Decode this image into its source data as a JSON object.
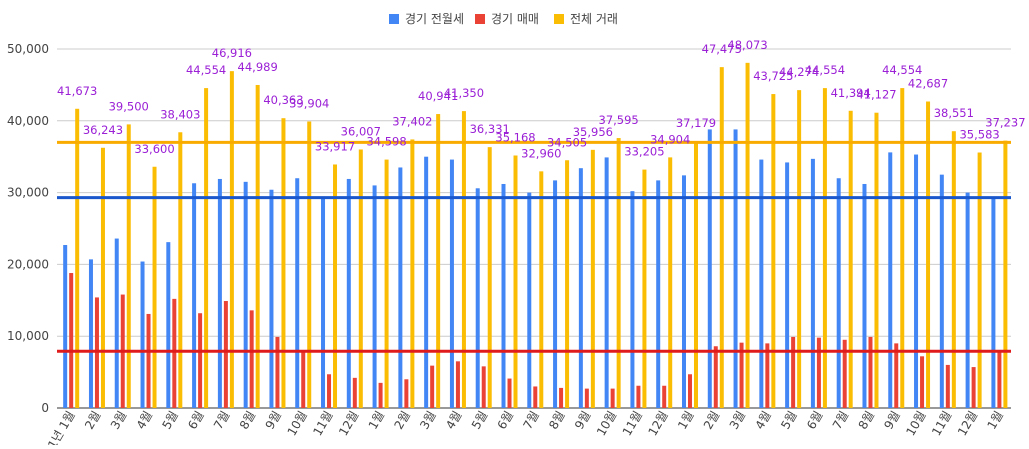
{
  "chart_data": {
    "type": "bar",
    "title": "",
    "xlabel": "",
    "ylabel": "",
    "ylim": [
      0,
      50000
    ],
    "yticks": [
      "0",
      "10,000",
      "20,000",
      "30,000",
      "40,000",
      "50,000"
    ],
    "ytick_values": [
      0,
      10000,
      20000,
      30000,
      40000,
      50000
    ],
    "grid": true,
    "legend_position": "top-center",
    "categories": [
      "1년 1월",
      "2월",
      "3월",
      "4월",
      "5월",
      "6월",
      "7월",
      "8월",
      "9월",
      "10월",
      "11월",
      "12월",
      "1월",
      "2월",
      "3월",
      "4월",
      "5월",
      "6월",
      "7월",
      "8월",
      "9월",
      "10월",
      "11월",
      "12월",
      "1월",
      "2월",
      "3월",
      "4월",
      "5월",
      "6월",
      "7월",
      "8월",
      "9월",
      "10월",
      "11월",
      "12월",
      "1월"
    ],
    "series": [
      {
        "name": "경기 전월세",
        "color": "#4285f4",
        "values": [
          22700,
          20700,
          23600,
          20400,
          23100,
          31300,
          31900,
          31500,
          30400,
          32000,
          29300,
          31900,
          31000,
          33500,
          35000,
          34600,
          30600,
          31200,
          30000,
          31700,
          33400,
          34900,
          30200,
          31700,
          32400,
          38800,
          38800,
          34600,
          34200,
          34700,
          32000,
          31200,
          35600,
          35300,
          32500,
          30000,
          29400
        ]
      },
      {
        "name": "경기 매매",
        "color": "#ea4335",
        "values": [
          18800,
          15400,
          15800,
          13100,
          15200,
          13200,
          14900,
          13600,
          9900,
          8000,
          4700,
          4200,
          3500,
          4000,
          5900,
          6500,
          5800,
          4100,
          3000,
          2800,
          2700,
          2700,
          3100,
          3100,
          4700,
          8600,
          9100,
          9000,
          9900,
          9800,
          9500,
          9900,
          9000,
          7200,
          6000,
          5700,
          8000
        ]
      },
      {
        "name": "전체 거래",
        "color": "#fbbc04",
        "values": [
          41673,
          36243,
          39500,
          33600,
          38403,
          44554,
          46916,
          44989,
          40363,
          39904,
          33917,
          36007,
          34598,
          37402,
          40941,
          41350,
          36331,
          35168,
          32960,
          34505,
          35956,
          37595,
          33205,
          34904,
          37179,
          47475,
          48073,
          43725,
          44274,
          44554,
          41394,
          41127,
          44554,
          42687,
          38551,
          35583,
          37237
        ],
        "data_labels": [
          "41,673",
          "36,243",
          "39,500",
          "33,600",
          "38,403",
          "44,554",
          "46,916",
          "44,989",
          "40,363",
          "39,904",
          "33,917",
          "36,007",
          "34,598",
          "37,402",
          "40,941",
          "41,350",
          "36,331",
          "35,168",
          "32,960",
          "34,505",
          "35,956",
          "37,595",
          "33,205",
          "34,904",
          "37,179",
          "47,475",
          "48,073",
          "43,725",
          "44,274",
          "44,554",
          "41,394",
          "41,127",
          "44,554",
          "42,687",
          "38,551",
          "35,583",
          "37,237"
        ]
      }
    ],
    "reference_lines": [
      {
        "value": 29300,
        "color": "#1a56cc"
      },
      {
        "value": 7900,
        "color": "#e01b1b"
      },
      {
        "value": 37000,
        "color": "#f9ab00"
      }
    ]
  }
}
